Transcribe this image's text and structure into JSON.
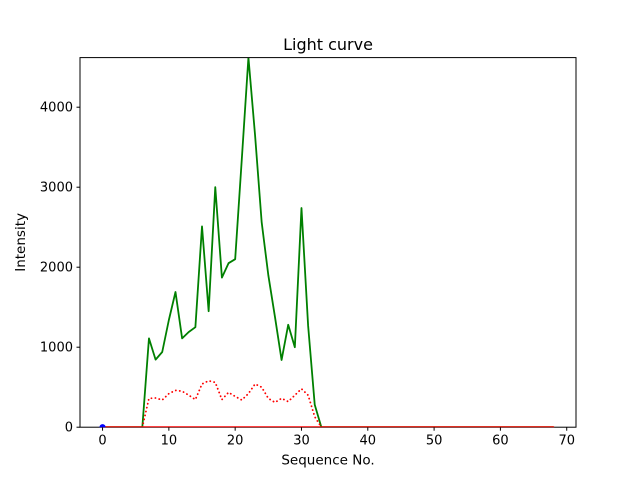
{
  "chart_data": {
    "type": "line",
    "title": "Light curve",
    "xlabel": "Sequence No.",
    "ylabel": "Intensity",
    "xlim": [
      -3.4,
      71.4
    ],
    "ylim": [
      0,
      4620
    ],
    "x_ticks": [
      0,
      10,
      20,
      30,
      40,
      50,
      60,
      70
    ],
    "y_ticks": [
      0,
      1000,
      2000,
      3000,
      4000
    ],
    "grid": false,
    "legend": null,
    "background_color": "#ffffff",
    "spine_color": "#000000",
    "series": [
      {
        "name": "green-curve",
        "color": "#008000",
        "style": "solid",
        "draw_on_top": false,
        "x": [
          0,
          1,
          2,
          3,
          4,
          5,
          6,
          7,
          8,
          9,
          10,
          11,
          12,
          13,
          14,
          15,
          16,
          17,
          18,
          19,
          20,
          21,
          22,
          23,
          24,
          25,
          26,
          27,
          28,
          29,
          30,
          31,
          32,
          33,
          34,
          35,
          36,
          37,
          38,
          39,
          40,
          41,
          42,
          43,
          44,
          45,
          46,
          47,
          48,
          49,
          50,
          51,
          52,
          53,
          54,
          55,
          56,
          57,
          58,
          59,
          60,
          61,
          62,
          63,
          64,
          65,
          66,
          67,
          68
        ],
        "y": [
          0,
          0,
          0,
          0,
          0,
          0,
          0,
          1110,
          845,
          940,
          1340,
          1690,
          1110,
          1190,
          1250,
          2510,
          1450,
          3000,
          1870,
          2050,
          2100,
          3350,
          4620,
          3650,
          2560,
          1900,
          1380,
          840,
          1280,
          1000,
          2740,
          1270,
          280,
          0,
          0,
          0,
          0,
          0,
          0,
          0,
          0,
          0,
          0,
          0,
          0,
          0,
          0,
          0,
          0,
          0,
          0,
          0,
          0,
          0,
          0,
          0,
          0,
          0,
          0,
          0,
          0,
          0,
          0,
          0,
          0,
          0,
          0,
          0,
          0
        ]
      },
      {
        "name": "red-dotted-curve",
        "color": "#ff0000",
        "style": "dotted",
        "draw_on_top": false,
        "x": [
          6,
          7,
          8,
          9,
          10,
          11,
          12,
          13,
          14,
          15,
          16,
          17,
          18,
          19,
          20,
          21,
          22,
          23,
          24,
          25,
          26,
          27,
          28,
          29,
          30,
          31,
          32,
          33
        ],
        "y": [
          0,
          360,
          365,
          340,
          420,
          460,
          450,
          400,
          345,
          540,
          580,
          560,
          345,
          435,
          385,
          340,
          420,
          540,
          500,
          360,
          310,
          360,
          320,
          400,
          480,
          400,
          130,
          0
        ]
      },
      {
        "name": "red-zero-line",
        "color": "#ff0000",
        "style": "solid",
        "draw_on_top": true,
        "x": [
          0,
          68
        ],
        "y": [
          0,
          0
        ]
      },
      {
        "name": "blue-point",
        "color": "#0000ff",
        "style": "marker",
        "draw_on_top": true,
        "x": [
          0
        ],
        "y": [
          0
        ]
      }
    ]
  }
}
